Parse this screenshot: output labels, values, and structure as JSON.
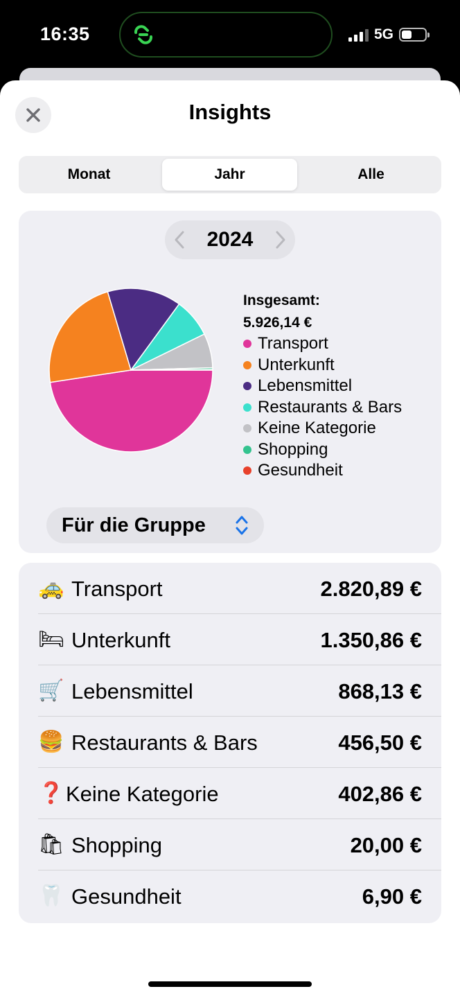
{
  "status_bar": {
    "time": "16:35",
    "network": "5G",
    "signal_bars_filled": 3,
    "signal_bars_total": 4,
    "battery_level": 0.45
  },
  "sheet": {
    "title": "Insights",
    "close_icon": "close-icon"
  },
  "tabs": [
    {
      "label": "Monat",
      "active": false
    },
    {
      "label": "Jahr",
      "active": true
    },
    {
      "label": "Alle",
      "active": false
    }
  ],
  "year_selector": {
    "year": "2024",
    "prev_icon": "chevron-left-icon",
    "next_icon": "chevron-right-icon"
  },
  "legend": {
    "total_label": "Insgesamt:",
    "total_value": "5.926,14 €",
    "items": [
      {
        "label": "Transport",
        "color": "#e0359a"
      },
      {
        "label": "Unterkunft",
        "color": "#f5821f"
      },
      {
        "label": "Lebensmittel",
        "color": "#4b2c83"
      },
      {
        "label": "Restaurants & Bars",
        "color": "#3be0cd"
      },
      {
        "label": "Keine Kategorie",
        "color": "#c2c2c6"
      },
      {
        "label": "Shopping",
        "color": "#34c38f"
      },
      {
        "label": "Gesundheit",
        "color": "#e8412b"
      }
    ]
  },
  "chart_data": {
    "type": "pie",
    "title": "",
    "labels": [
      "Transport",
      "Unterkunft",
      "Lebensmittel",
      "Restaurants & Bars",
      "Keine Kategorie",
      "Shopping",
      "Gesundheit"
    ],
    "values": [
      2820.89,
      1350.86,
      868.13,
      456.5,
      402.86,
      20.0,
      6.9
    ],
    "colors": [
      "#e0359a",
      "#f5821f",
      "#4b2c83",
      "#3be0cd",
      "#c2c2c6",
      "#34c38f",
      "#e8412b"
    ],
    "legend_position": "right"
  },
  "group_selector": {
    "label": "Für die Gruppe",
    "icon": "chevron-up-down-icon"
  },
  "categories": [
    {
      "emoji": "🚕",
      "name": "Transport",
      "amount": "2.820,89 €"
    },
    {
      "emoji": "🛏",
      "name": "Unterkunft",
      "amount": "1.350,86 €"
    },
    {
      "emoji": "🛒",
      "name": "Lebensmittel",
      "amount": "868,13 €"
    },
    {
      "emoji": "🍔",
      "name": "Restaurants & Bars",
      "amount": "456,50 €"
    },
    {
      "emoji": "❓",
      "name": "Keine Kategorie",
      "amount": "402,86 €"
    },
    {
      "emoji": "🛍",
      "name": "Shopping",
      "amount": "20,00 €"
    },
    {
      "emoji": "🦷",
      "name": "Gesundheit",
      "amount": "6,90 €"
    }
  ]
}
